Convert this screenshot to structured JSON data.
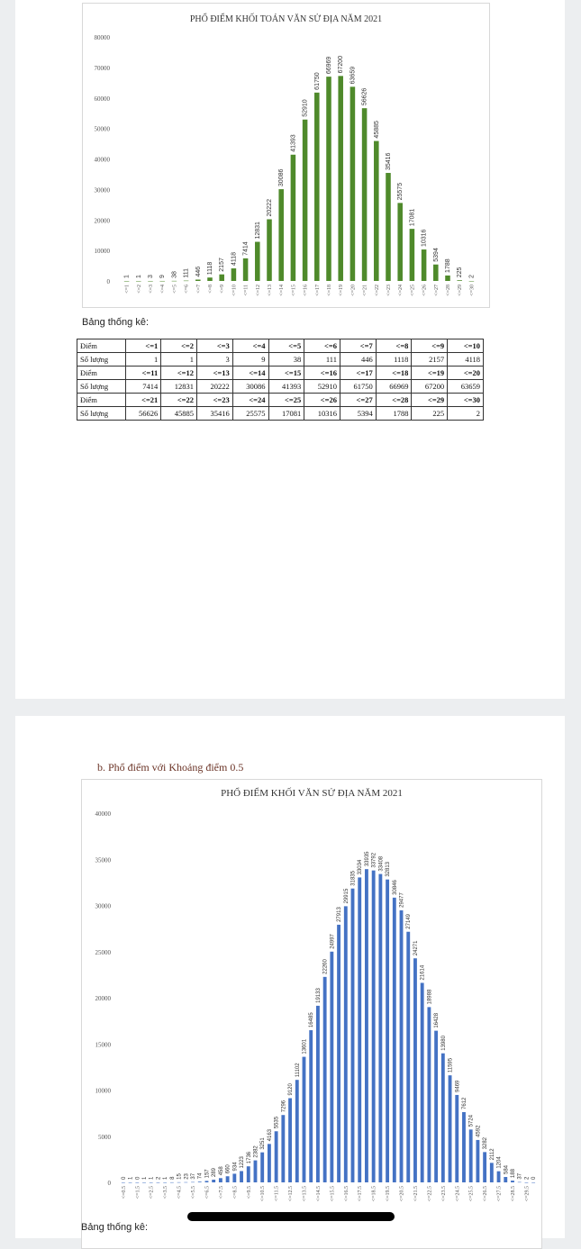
{
  "chart_data": [
    {
      "type": "bar",
      "title": "PHỔ ĐIỂM KHỐI TOÁN VĂN SỬ ĐỊA NĂM 2021",
      "categories": [
        "<=1",
        "<=2",
        "<=3",
        "<=4",
        "<=5",
        "<=6",
        "<=7",
        "<=8",
        "<=9",
        "<=10",
        "<=11",
        "<=12",
        "<=13",
        "<=14",
        "<=15",
        "<=16",
        "<=17",
        "<=18",
        "<=19",
        "<=20",
        "<=21",
        "<=22",
        "<=23",
        "<=24",
        "<=25",
        "<=26",
        "<=27",
        "<=28",
        "<=29",
        "<=30"
      ],
      "values": [
        1,
        1,
        3,
        9,
        38,
        111,
        446,
        1118,
        2157,
        4118,
        7414,
        12831,
        20222,
        30086,
        41393,
        52910,
        61750,
        66969,
        67200,
        63659,
        56626,
        45885,
        35416,
        25575,
        17081,
        10316,
        5394,
        1788,
        225,
        2
      ],
      "ylim": [
        0,
        80000
      ],
      "yticks": [
        0,
        10000,
        20000,
        30000,
        40000,
        50000,
        60000,
        70000,
        80000
      ],
      "color": "#4f8a2b",
      "grid": false,
      "data_labels": true
    },
    {
      "type": "bar",
      "title": "PHỔ ĐIỂM KHỐI VĂN SỬ ĐỊA NĂM 2021",
      "x_tick_labels": [
        "<=0.5",
        "<=1.5",
        "<=2.5",
        "<=3.5",
        "<=4.5",
        "<=5.5",
        "<=6.5",
        "<=7.5",
        "<=8.5",
        "<=9.5",
        "<=10.5",
        "<=11.5",
        "<=12.5",
        "<=13.5",
        "<=14.5",
        "<=15.5",
        "<=16.5",
        "<=17.5",
        "<=18.5",
        "<=19.5",
        "<=20.5",
        "<=21.5",
        "<=22.5",
        "<=23.5",
        "<=24.5",
        "<=25.5",
        "<=26.5",
        "<=27.5",
        "<=28.5",
        "<=29.5"
      ],
      "values": [
        0,
        1,
        0,
        1,
        1,
        2,
        1,
        8,
        15,
        23,
        37,
        74,
        157,
        289,
        458,
        660,
        934,
        1223,
        1736,
        2382,
        3251,
        4163,
        5535,
        7296,
        9120,
        11102,
        13601,
        16485,
        19133,
        22260,
        24997,
        27913,
        29915,
        31835,
        33034,
        33935,
        33792,
        33408,
        32813,
        30846,
        29477,
        27149,
        24271,
        21614,
        18988,
        16428,
        13980,
        11595,
        9469,
        7612,
        5724,
        4592,
        3282,
        2112,
        1204,
        584,
        188,
        37,
        2,
        0
      ],
      "ylim": [
        0,
        40000
      ],
      "yticks": [
        0,
        5000,
        10000,
        15000,
        20000,
        25000,
        30000,
        35000,
        40000
      ],
      "color": "#4472c4",
      "grid": false,
      "data_labels": true
    }
  ],
  "page1": {
    "stat_label": "Bảng thống kê:",
    "table": [
      [
        "Điểm",
        "<=1",
        "<=2",
        "<=3",
        "<=4",
        "<=5",
        "<=6",
        "<=7",
        "<=8",
        "<=9",
        "<=10"
      ],
      [
        "Số lượng",
        "1",
        "1",
        "3",
        "9",
        "38",
        "111",
        "446",
        "1118",
        "2157",
        "4118"
      ],
      [
        "Điểm",
        "<=11",
        "<=12",
        "<=13",
        "<=14",
        "<=15",
        "<=16",
        "<=17",
        "<=18",
        "<=19",
        "<=20"
      ],
      [
        "Số lượng",
        "7414",
        "12831",
        "20222",
        "30086",
        "41393",
        "52910",
        "61750",
        "66969",
        "67200",
        "63659"
      ],
      [
        "Điểm",
        "<=21",
        "<=22",
        "<=23",
        "<=24",
        "<=25",
        "<=26",
        "<=27",
        "<=28",
        "<=29",
        "<=30"
      ],
      [
        "Số lượng",
        "56626",
        "45885",
        "35416",
        "25575",
        "17081",
        "10316",
        "5394",
        "1788",
        "225",
        "2"
      ]
    ]
  },
  "page2": {
    "section_heading": "b.   Phổ điểm với Khoảng điểm 0.5",
    "stat_label": "Bảng thống kê:"
  }
}
